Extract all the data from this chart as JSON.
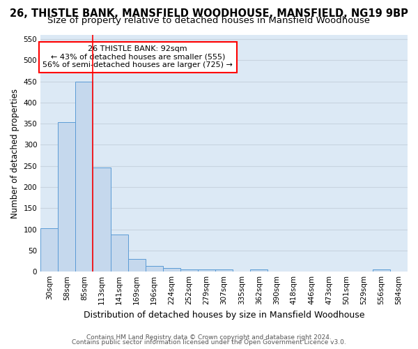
{
  "title1": "26, THISTLE BANK, MANSFIELD WOODHOUSE, MANSFIELD, NG19 9BP",
  "title2": "Size of property relative to detached houses in Mansfield Woodhouse",
  "xlabel": "Distribution of detached houses by size in Mansfield Woodhouse",
  "ylabel": "Number of detached properties",
  "footnote1": "Contains HM Land Registry data © Crown copyright and database right 2024.",
  "footnote2": "Contains public sector information licensed under the Open Government Licence v3.0.",
  "bin_labels": [
    "30sqm",
    "58sqm",
    "85sqm",
    "113sqm",
    "141sqm",
    "169sqm",
    "196sqm",
    "224sqm",
    "252sqm",
    "279sqm",
    "307sqm",
    "335sqm",
    "362sqm",
    "390sqm",
    "418sqm",
    "446sqm",
    "473sqm",
    "501sqm",
    "529sqm",
    "556sqm",
    "584sqm"
  ],
  "bar_values": [
    103,
    353,
    449,
    246,
    87,
    30,
    13,
    9,
    5,
    5,
    5,
    0,
    5,
    0,
    0,
    0,
    0,
    0,
    0,
    5,
    0
  ],
  "bar_color": "#c5d8ed",
  "bar_edge_color": "#5b9bd5",
  "vline_color": "red",
  "vline_pos": 2.5,
  "annotation_text": "26 THISTLE BANK: 92sqm\n← 43% of detached houses are smaller (555)\n56% of semi-detached houses are larger (725) →",
  "annotation_box_color": "white",
  "annotation_box_edge": "red",
  "ylim": [
    0,
    560
  ],
  "yticks": [
    0,
    50,
    100,
    150,
    200,
    250,
    300,
    350,
    400,
    450,
    500,
    550
  ],
  "grid_color": "#c8d4e0",
  "bg_color": "#dce9f5",
  "title1_fontsize": 10.5,
  "title2_fontsize": 9.5,
  "xlabel_fontsize": 9,
  "ylabel_fontsize": 8.5,
  "tick_fontsize": 7.5,
  "annot_fontsize": 8,
  "footnote_fontsize": 6.5
}
